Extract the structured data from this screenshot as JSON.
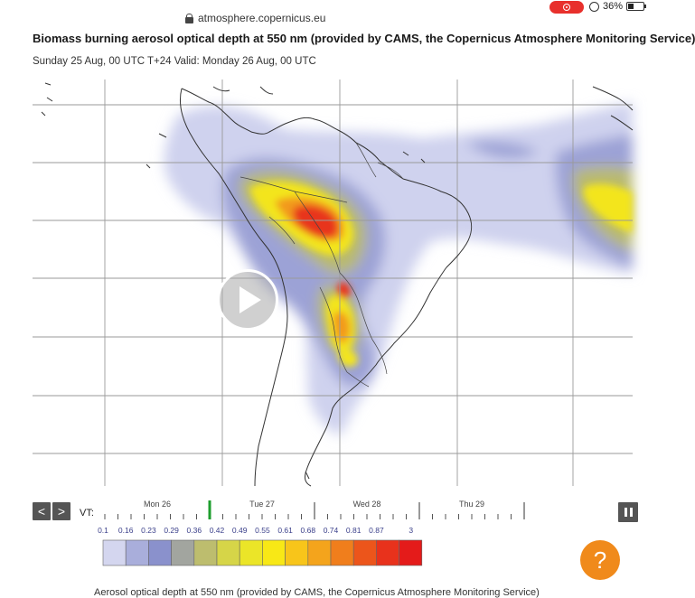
{
  "browser": {
    "url": "atmosphere.copernicus.eu",
    "battery": "36%"
  },
  "page": {
    "title": "Biomass burning aerosol optical depth at 550 nm (provided by CAMS, the Copernicus Atmosphere Monitoring Service)",
    "subtitle": "Sunday 25 Aug, 00 UTC T+24 Valid: Monday 26 Aug, 00 UTC",
    "caption": "Aerosol optical depth at 550 nm (provided by CAMS, the Copernicus Atmosphere Monitoring Service)"
  },
  "controls": {
    "prev_label": "<",
    "next_label": ">",
    "vt_label": "VT:",
    "help_label": "?"
  },
  "timeline": {
    "days": [
      "Mon 26",
      "Tue 27",
      "Wed 28",
      "Thu 29"
    ],
    "current_index": 8
  },
  "legend": {
    "labels": [
      "0.1",
      "0.16",
      "0.23",
      "0.29",
      "0.36",
      "0.42",
      "0.49",
      "0.55",
      "0.61",
      "0.68",
      "0.74",
      "0.81",
      "0.87",
      "3"
    ],
    "colors": [
      "#d4d6ef",
      "#a9aedb",
      "#8a91cc",
      "#a2a59f",
      "#bdbd6e",
      "#d6d548",
      "#ebe528",
      "#f8e816",
      "#f8c51a",
      "#f4a41c",
      "#f07e1c",
      "#ec551b",
      "#e8321c",
      "#e41b1a"
    ]
  },
  "colors": {
    "accent": "#f08a1b",
    "timeline_marker": "#1e9e2e"
  }
}
